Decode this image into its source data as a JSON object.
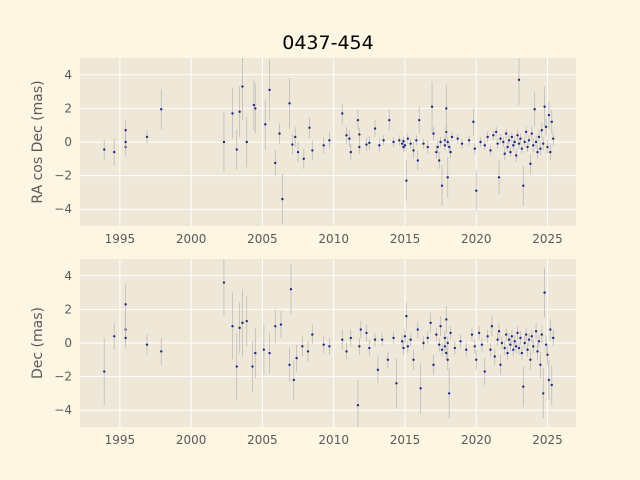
{
  "chart_data": [
    {
      "type": "scatter",
      "title": "0437-454",
      "xlabel": "",
      "ylabel": "RA cos Dec (mas)",
      "xlim": [
        1992.2,
        2027.0
      ],
      "ylim": [
        -5,
        5
      ],
      "xticks": [
        "1995",
        "2000",
        "2005",
        "2010",
        "2015",
        "2020",
        "2025"
      ],
      "yticks": [
        "4",
        "2",
        "0",
        "−2",
        "−4"
      ],
      "grid": true,
      "background": "#efe8d8",
      "marker_color": "#1f2a88",
      "errorbar_color": "#b0b0b0",
      "points": [
        [
          1993.9,
          -0.45,
          0.6
        ],
        [
          1994.6,
          -0.6,
          0.8
        ],
        [
          1995.4,
          0.7,
          0.6
        ],
        [
          1995.4,
          -0.3,
          0.5
        ],
        [
          1995.4,
          0.0,
          0.5
        ],
        [
          1996.9,
          0.3,
          0.4
        ],
        [
          1997.9,
          1.95,
          1.2
        ],
        [
          2002.3,
          0.0,
          1.8
        ],
        [
          2002.9,
          1.7,
          1.5
        ],
        [
          2003.2,
          -0.45,
          1.2
        ],
        [
          2003.4,
          1.8,
          1.5
        ],
        [
          2003.6,
          3.3,
          2.0
        ],
        [
          2003.9,
          0.0,
          1.5
        ],
        [
          2004.4,
          2.2,
          1.5
        ],
        [
          2004.5,
          2.0,
          1.5
        ],
        [
          2005.2,
          1.05,
          1.5
        ],
        [
          2005.5,
          3.1,
          1.8
        ],
        [
          2005.9,
          -1.25,
          0.8
        ],
        [
          2006.2,
          0.5,
          0.6
        ],
        [
          2006.4,
          -3.4,
          1.5
        ],
        [
          2006.9,
          2.3,
          1.5
        ],
        [
          2007.1,
          -0.15,
          0.6
        ],
        [
          2007.3,
          0.3,
          0.6
        ],
        [
          2007.5,
          -0.6,
          0.6
        ],
        [
          2007.9,
          -1.0,
          0.6
        ],
        [
          2008.3,
          0.85,
          0.6
        ],
        [
          2008.5,
          -0.5,
          0.6
        ],
        [
          2009.3,
          -0.2,
          0.5
        ],
        [
          2009.7,
          0.1,
          0.5
        ],
        [
          2010.6,
          1.7,
          0.6
        ],
        [
          2010.9,
          0.4,
          0.5
        ],
        [
          2011.1,
          0.2,
          0.5
        ],
        [
          2011.2,
          -0.6,
          0.5
        ],
        [
          2011.7,
          1.3,
          0.6
        ],
        [
          2011.8,
          0.45,
          0.4
        ],
        [
          2011.8,
          -0.3,
          0.4
        ],
        [
          2012.3,
          -0.15,
          0.4
        ],
        [
          2012.5,
          -0.05,
          0.4
        ],
        [
          2012.9,
          0.8,
          0.5
        ],
        [
          2013.2,
          -0.2,
          0.4
        ],
        [
          2013.5,
          0.1,
          0.3
        ],
        [
          2013.9,
          1.3,
          0.6
        ],
        [
          2014.2,
          0.0,
          0.3
        ],
        [
          2014.6,
          0.1,
          0.3
        ],
        [
          2014.8,
          -0.1,
          0.3
        ],
        [
          2014.9,
          -0.3,
          0.3
        ],
        [
          2014.9,
          0.05,
          0.3
        ],
        [
          2015.0,
          -0.2,
          0.3
        ],
        [
          2015.1,
          -2.3,
          1.2
        ],
        [
          2015.2,
          0.2,
          0.3
        ],
        [
          2015.4,
          -0.1,
          0.3
        ],
        [
          2015.6,
          -0.5,
          0.5
        ],
        [
          2015.8,
          0.1,
          0.3
        ],
        [
          2015.9,
          -1.1,
          0.6
        ],
        [
          2016.0,
          1.3,
          0.8
        ],
        [
          2016.3,
          -0.1,
          0.3
        ],
        [
          2016.6,
          -0.3,
          0.4
        ],
        [
          2016.9,
          2.1,
          1.5
        ],
        [
          2017.0,
          0.5,
          0.4
        ],
        [
          2017.2,
          -0.6,
          0.4
        ],
        [
          2017.3,
          -0.3,
          0.4
        ],
        [
          2017.4,
          -1.1,
          0.5
        ],
        [
          2017.5,
          0.0,
          0.3
        ],
        [
          2017.6,
          -2.6,
          1.2
        ],
        [
          2017.8,
          0.1,
          0.3
        ],
        [
          2017.8,
          -0.2,
          0.3
        ],
        [
          2017.9,
          0.6,
          0.4
        ],
        [
          2017.9,
          2.0,
          1.4
        ],
        [
          2018.0,
          -2.1,
          1.2
        ],
        [
          2018.0,
          0.0,
          0.3
        ],
        [
          2018.1,
          -0.3,
          0.3
        ],
        [
          2018.2,
          -0.6,
          0.4
        ],
        [
          2018.3,
          0.3,
          0.3
        ],
        [
          2018.7,
          0.2,
          0.3
        ],
        [
          2019.0,
          -0.1,
          0.3
        ],
        [
          2019.5,
          0.1,
          0.3
        ],
        [
          2019.8,
          1.2,
          0.8
        ],
        [
          2019.9,
          -0.4,
          0.3
        ],
        [
          2020.0,
          -2.9,
          1.2
        ],
        [
          2020.3,
          0.0,
          0.3
        ],
        [
          2020.6,
          -0.2,
          0.3
        ],
        [
          2020.8,
          0.3,
          0.3
        ],
        [
          2021.0,
          -0.5,
          0.3
        ],
        [
          2021.2,
          0.4,
          0.3
        ],
        [
          2021.4,
          0.6,
          0.3
        ],
        [
          2021.5,
          -0.1,
          0.3
        ],
        [
          2021.6,
          -2.1,
          1.0
        ],
        [
          2021.7,
          0.2,
          0.3
        ],
        [
          2021.9,
          0.0,
          0.3
        ],
        [
          2022.0,
          -0.7,
          0.4
        ],
        [
          2022.1,
          0.5,
          0.3
        ],
        [
          2022.2,
          -0.3,
          0.3
        ],
        [
          2022.3,
          0.1,
          0.3
        ],
        [
          2022.4,
          -0.6,
          0.3
        ],
        [
          2022.5,
          0.3,
          0.3
        ],
        [
          2022.6,
          -0.2,
          0.3
        ],
        [
          2022.7,
          0.0,
          0.3
        ],
        [
          2022.8,
          -0.8,
          0.4
        ],
        [
          2022.9,
          0.4,
          0.3
        ],
        [
          2023.0,
          3.7,
          1.5
        ],
        [
          2023.0,
          -0.1,
          0.3
        ],
        [
          2023.1,
          0.2,
          0.3
        ],
        [
          2023.2,
          -0.4,
          0.3
        ],
        [
          2023.3,
          -2.6,
          1.2
        ],
        [
          2023.4,
          0.0,
          0.3
        ],
        [
          2023.5,
          0.6,
          0.3
        ],
        [
          2023.6,
          -0.3,
          0.3
        ],
        [
          2023.7,
          0.1,
          0.3
        ],
        [
          2023.8,
          -1.3,
          0.6
        ],
        [
          2023.9,
          0.5,
          0.4
        ],
        [
          2024.0,
          -0.2,
          0.4
        ],
        [
          2024.1,
          1.95,
          1.0
        ],
        [
          2024.2,
          0.0,
          0.4
        ],
        [
          2024.3,
          -0.6,
          0.4
        ],
        [
          2024.4,
          0.3,
          0.4
        ],
        [
          2024.5,
          -0.4,
          0.4
        ],
        [
          2024.6,
          0.7,
          0.5
        ],
        [
          2024.7,
          -0.1,
          0.4
        ],
        [
          2024.8,
          2.1,
          1.2
        ],
        [
          2024.9,
          0.9,
          0.5
        ],
        [
          2025.0,
          -0.3,
          0.4
        ],
        [
          2025.1,
          1.6,
          0.8
        ],
        [
          2025.2,
          -0.6,
          0.5
        ],
        [
          2025.3,
          1.2,
          0.7
        ],
        [
          2025.4,
          0.2,
          0.4
        ]
      ]
    },
    {
      "type": "scatter",
      "title": "",
      "xlabel": "",
      "ylabel": "Dec (mas)",
      "xlim": [
        1992.2,
        2027.0
      ],
      "ylim": [
        -5,
        5
      ],
      "xticks": [
        "1995",
        "2000",
        "2005",
        "2010",
        "2015",
        "2020",
        "2025"
      ],
      "yticks": [
        "4",
        "2",
        "0",
        "−2",
        "−4"
      ],
      "grid": true,
      "background": "#efe8d8",
      "marker_color": "#1f2a88",
      "errorbar_color": "#b0b0b0",
      "points": [
        [
          1993.9,
          -1.7,
          2.0
        ],
        [
          1994.6,
          0.4,
          0.8
        ],
        [
          1995.4,
          2.3,
          1.2
        ],
        [
          1995.4,
          0.8,
          0.8
        ],
        [
          1995.4,
          0.3,
          0.6
        ],
        [
          1996.9,
          -0.1,
          0.6
        ],
        [
          1997.9,
          -0.5,
          0.8
        ],
        [
          2002.3,
          3.6,
          2.0
        ],
        [
          2002.9,
          1.0,
          2.0
        ],
        [
          2003.2,
          -1.4,
          2.0
        ],
        [
          2003.4,
          0.9,
          1.5
        ],
        [
          2003.6,
          1.2,
          2.0
        ],
        [
          2003.9,
          1.3,
          1.5
        ],
        [
          2004.3,
          -1.4,
          1.5
        ],
        [
          2004.5,
          -0.6,
          1.5
        ],
        [
          2005.1,
          -0.4,
          1.5
        ],
        [
          2005.5,
          -0.6,
          1.2
        ],
        [
          2005.9,
          1.0,
          1.0
        ],
        [
          2006.3,
          1.1,
          0.8
        ],
        [
          2006.9,
          -1.3,
          1.0
        ],
        [
          2007.0,
          3.2,
          1.5
        ],
        [
          2007.2,
          -2.2,
          1.2
        ],
        [
          2007.4,
          -0.9,
          0.8
        ],
        [
          2007.8,
          -0.2,
          0.6
        ],
        [
          2008.2,
          -0.5,
          0.6
        ],
        [
          2008.5,
          0.5,
          0.6
        ],
        [
          2009.3,
          -0.1,
          0.5
        ],
        [
          2009.7,
          -0.2,
          0.5
        ],
        [
          2010.6,
          0.2,
          0.6
        ],
        [
          2010.9,
          -0.5,
          0.5
        ],
        [
          2011.2,
          0.3,
          0.5
        ],
        [
          2011.7,
          -3.7,
          1.5
        ],
        [
          2011.8,
          -0.2,
          0.5
        ],
        [
          2011.9,
          0.8,
          0.5
        ],
        [
          2012.3,
          0.6,
          0.5
        ],
        [
          2012.5,
          -0.3,
          0.5
        ],
        [
          2012.9,
          0.2,
          0.4
        ],
        [
          2013.1,
          -1.6,
          0.8
        ],
        [
          2013.4,
          0.2,
          0.4
        ],
        [
          2013.8,
          -1.0,
          0.5
        ],
        [
          2014.2,
          0.3,
          0.4
        ],
        [
          2014.4,
          -2.4,
          1.5
        ],
        [
          2014.8,
          0.1,
          0.4
        ],
        [
          2014.9,
          -0.3,
          0.4
        ],
        [
          2015.0,
          0.4,
          0.4
        ],
        [
          2015.1,
          1.6,
          0.8
        ],
        [
          2015.2,
          -0.2,
          0.4
        ],
        [
          2015.4,
          0.2,
          0.4
        ],
        [
          2015.6,
          -1.0,
          0.6
        ],
        [
          2015.9,
          0.8,
          0.5
        ],
        [
          2016.1,
          -2.7,
          1.5
        ],
        [
          2016.3,
          0.0,
          0.4
        ],
        [
          2016.6,
          0.3,
          0.4
        ],
        [
          2016.8,
          1.2,
          0.6
        ],
        [
          2017.0,
          -1.3,
          0.6
        ],
        [
          2017.2,
          0.5,
          0.4
        ],
        [
          2017.4,
          -0.1,
          0.4
        ],
        [
          2017.5,
          1.0,
          0.6
        ],
        [
          2017.6,
          -0.4,
          0.4
        ],
        [
          2017.8,
          0.3,
          0.4
        ],
        [
          2017.8,
          -0.2,
          0.4
        ],
        [
          2017.9,
          1.4,
          0.8
        ],
        [
          2017.9,
          -0.6,
          0.4
        ],
        [
          2018.0,
          0.0,
          0.4
        ],
        [
          2018.0,
          -1.0,
          0.6
        ],
        [
          2018.1,
          -3.0,
          1.5
        ],
        [
          2018.2,
          0.6,
          0.4
        ],
        [
          2018.5,
          -0.3,
          0.4
        ],
        [
          2018.9,
          0.1,
          0.4
        ],
        [
          2019.3,
          -0.4,
          0.4
        ],
        [
          2019.7,
          0.5,
          0.4
        ],
        [
          2019.9,
          -0.2,
          0.4
        ],
        [
          2020.0,
          -1.0,
          0.6
        ],
        [
          2020.2,
          0.6,
          0.4
        ],
        [
          2020.4,
          -0.1,
          0.4
        ],
        [
          2020.6,
          -1.7,
          0.8
        ],
        [
          2020.8,
          0.4,
          0.4
        ],
        [
          2021.0,
          -0.4,
          0.4
        ],
        [
          2021.1,
          1.0,
          0.6
        ],
        [
          2021.3,
          -0.8,
          0.5
        ],
        [
          2021.5,
          0.2,
          0.4
        ],
        [
          2021.6,
          0.7,
          0.5
        ],
        [
          2021.7,
          -1.3,
          0.6
        ],
        [
          2021.8,
          0.0,
          0.4
        ],
        [
          2022.0,
          -0.3,
          0.4
        ],
        [
          2022.1,
          0.5,
          0.4
        ],
        [
          2022.2,
          -0.6,
          0.4
        ],
        [
          2022.3,
          0.2,
          0.4
        ],
        [
          2022.4,
          -0.1,
          0.4
        ],
        [
          2022.5,
          0.4,
          0.4
        ],
        [
          2022.6,
          -0.4,
          0.4
        ],
        [
          2022.7,
          0.1,
          0.4
        ],
        [
          2022.8,
          -0.2,
          0.4
        ],
        [
          2022.9,
          0.6,
          0.4
        ],
        [
          2023.0,
          -0.3,
          0.4
        ],
        [
          2023.1,
          0.3,
          0.4
        ],
        [
          2023.2,
          -0.6,
          0.4
        ],
        [
          2023.3,
          -2.6,
          1.2
        ],
        [
          2023.4,
          0.0,
          0.4
        ],
        [
          2023.5,
          0.5,
          0.4
        ],
        [
          2023.6,
          -0.4,
          0.4
        ],
        [
          2023.7,
          0.2,
          0.4
        ],
        [
          2023.8,
          -1.0,
          0.6
        ],
        [
          2023.9,
          0.4,
          0.4
        ],
        [
          2024.0,
          -0.2,
          0.4
        ],
        [
          2024.2,
          0.7,
          0.5
        ],
        [
          2024.3,
          -0.5,
          0.5
        ],
        [
          2024.4,
          0.1,
          0.4
        ],
        [
          2024.5,
          -1.3,
          0.8
        ],
        [
          2024.6,
          0.5,
          0.5
        ],
        [
          2024.7,
          -3.0,
          1.5
        ],
        [
          2024.8,
          3.0,
          1.5
        ],
        [
          2024.9,
          -0.1,
          0.5
        ],
        [
          2025.0,
          -0.7,
          0.6
        ],
        [
          2025.1,
          -2.2,
          1.2
        ],
        [
          2025.2,
          0.8,
          0.6
        ],
        [
          2025.3,
          -2.5,
          1.2
        ],
        [
          2025.4,
          0.3,
          0.5
        ]
      ]
    }
  ]
}
